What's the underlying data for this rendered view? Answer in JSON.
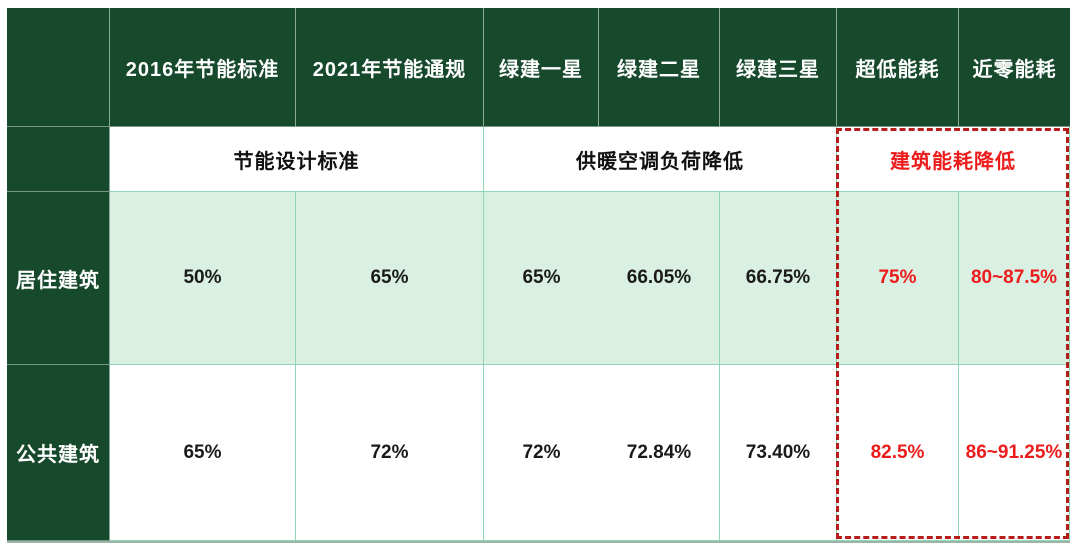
{
  "chart_data": {
    "type": "table",
    "title": "",
    "columns": [
      "",
      "2016年节能标准",
      "2021年节能通规",
      "绿建一星",
      "绿建二星",
      "绿建三星",
      "超低能耗",
      "近零能耗"
    ],
    "group_headers": [
      {
        "label": "节能设计标准",
        "spans_columns": [
          "2016年节能标准",
          "2021年节能通规"
        ],
        "highlighted": false
      },
      {
        "label": "供暖空调负荷降低",
        "spans_columns": [
          "绿建一星",
          "绿建二星",
          "绿建三星"
        ],
        "highlighted": false
      },
      {
        "label": "建筑能耗降低",
        "spans_columns": [
          "超低能耗",
          "近零能耗"
        ],
        "highlighted": true
      }
    ],
    "rows": [
      {
        "label": "居住建筑",
        "values": [
          "50%",
          "65%",
          "65%",
          "66.05%",
          "66.75%",
          "75%",
          "80~87.5%"
        ]
      },
      {
        "label": "公共建筑",
        "values": [
          "65%",
          "72%",
          "72%",
          "72.84%",
          "73.40%",
          "82.5%",
          "86~91.25%"
        ]
      }
    ],
    "highlighted_columns": [
      "超低能耗",
      "近零能耗"
    ],
    "layout_hints": {
      "grid": true,
      "highlight_style": "red dashed rectangle around last two columns below header"
    }
  },
  "colors": {
    "header_green": "#17492d",
    "row_light_green": "#daf0e3",
    "grid_line_teal": "#8fd6b4",
    "highlight_text_red": "#ed1c1c",
    "dashed_border_red": "#b51d1b",
    "bottom_border_grey_green": "#9db3a8",
    "header_text": "#ffffff",
    "body_text": "#1a1a1a"
  }
}
